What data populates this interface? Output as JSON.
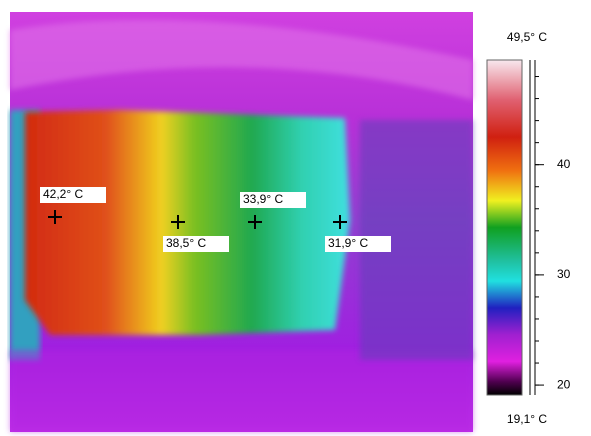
{
  "thermal_image": {
    "markers": [
      {
        "label": "42,2° C"
      },
      {
        "label": "38,5° C"
      },
      {
        "label": "33,9° C"
      },
      {
        "label": "31,9° C"
      }
    ]
  },
  "scale": {
    "max": {
      "value": 49.5,
      "label": "49,5° C"
    },
    "min": {
      "value": 19.1,
      "label": "19,1° C"
    },
    "ticks": [
      20,
      30,
      40
    ]
  }
}
